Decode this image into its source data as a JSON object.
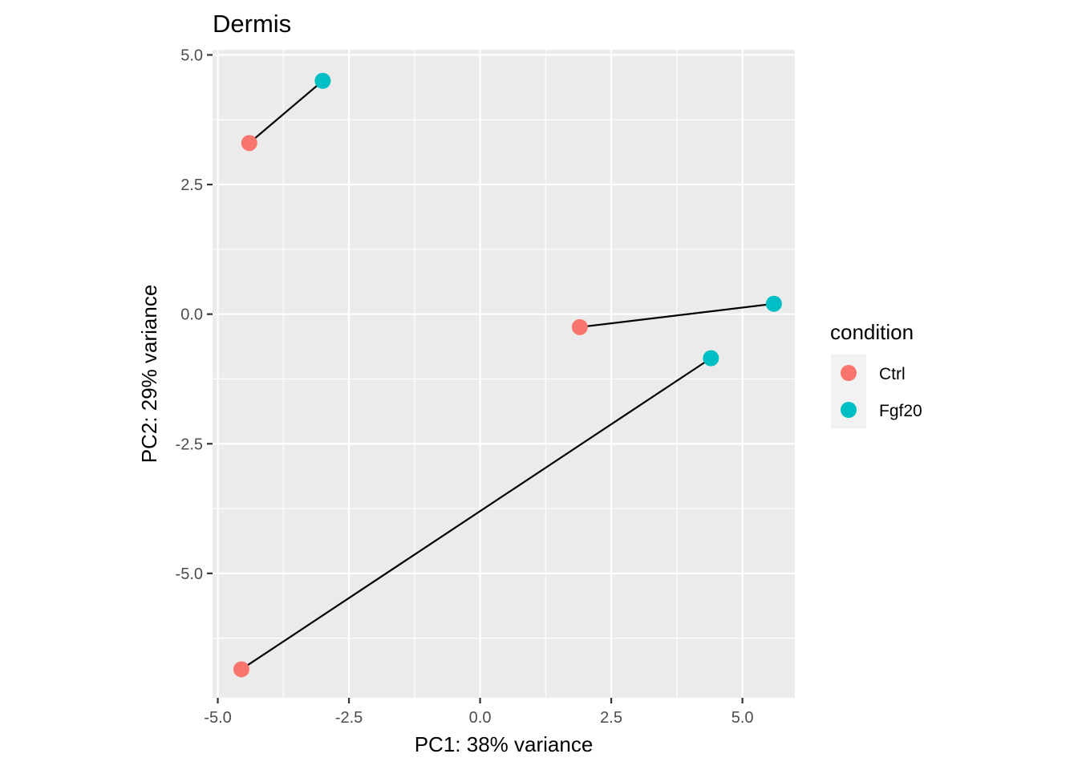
{
  "chart_data": {
    "type": "scatter",
    "title": "Dermis",
    "xlabel": "PC1: 38% variance",
    "ylabel": "PC2: 29% variance",
    "xlim": [
      -5.1,
      6.0
    ],
    "ylim": [
      -7.4,
      5.1
    ],
    "x_ticks": [
      -5.0,
      -2.5,
      0.0,
      2.5,
      5.0
    ],
    "x_tick_labels": [
      "-5.0",
      "-2.5",
      "0.0",
      "2.5",
      "5.0"
    ],
    "y_ticks": [
      -5.0,
      -2.5,
      0.0,
      2.5,
      5.0
    ],
    "y_tick_labels": [
      "-5.0",
      "-2.5",
      "0.0",
      "2.5",
      "5.0"
    ],
    "grid": true,
    "legend": {
      "title": "condition",
      "placement": "right",
      "entries": [
        {
          "label": "Ctrl",
          "color": "#F8766D"
        },
        {
          "label": "Fgf20",
          "color": "#00BFC4"
        }
      ]
    },
    "points": [
      {
        "x": -4.4,
        "y": 3.3,
        "condition": "Ctrl"
      },
      {
        "x": -3.0,
        "y": 4.5,
        "condition": "Fgf20"
      },
      {
        "x": 1.9,
        "y": -0.25,
        "condition": "Ctrl"
      },
      {
        "x": 5.6,
        "y": 0.2,
        "condition": "Fgf20"
      },
      {
        "x": -4.55,
        "y": -6.85,
        "condition": "Ctrl"
      },
      {
        "x": 4.4,
        "y": -0.85,
        "condition": "Fgf20"
      }
    ],
    "segments": [
      {
        "from": [
          -4.4,
          3.3
        ],
        "to": [
          -3.0,
          4.5
        ]
      },
      {
        "from": [
          1.9,
          -0.25
        ],
        "to": [
          5.6,
          0.2
        ]
      },
      {
        "from": [
          -4.55,
          -6.85
        ],
        "to": [
          4.4,
          -0.85
        ]
      }
    ],
    "colors": {
      "panel_background": "#EBEBEB",
      "grid": "#FFFFFF",
      "segment": "#000000",
      "legend_key_background": "#F2F2F2"
    }
  }
}
